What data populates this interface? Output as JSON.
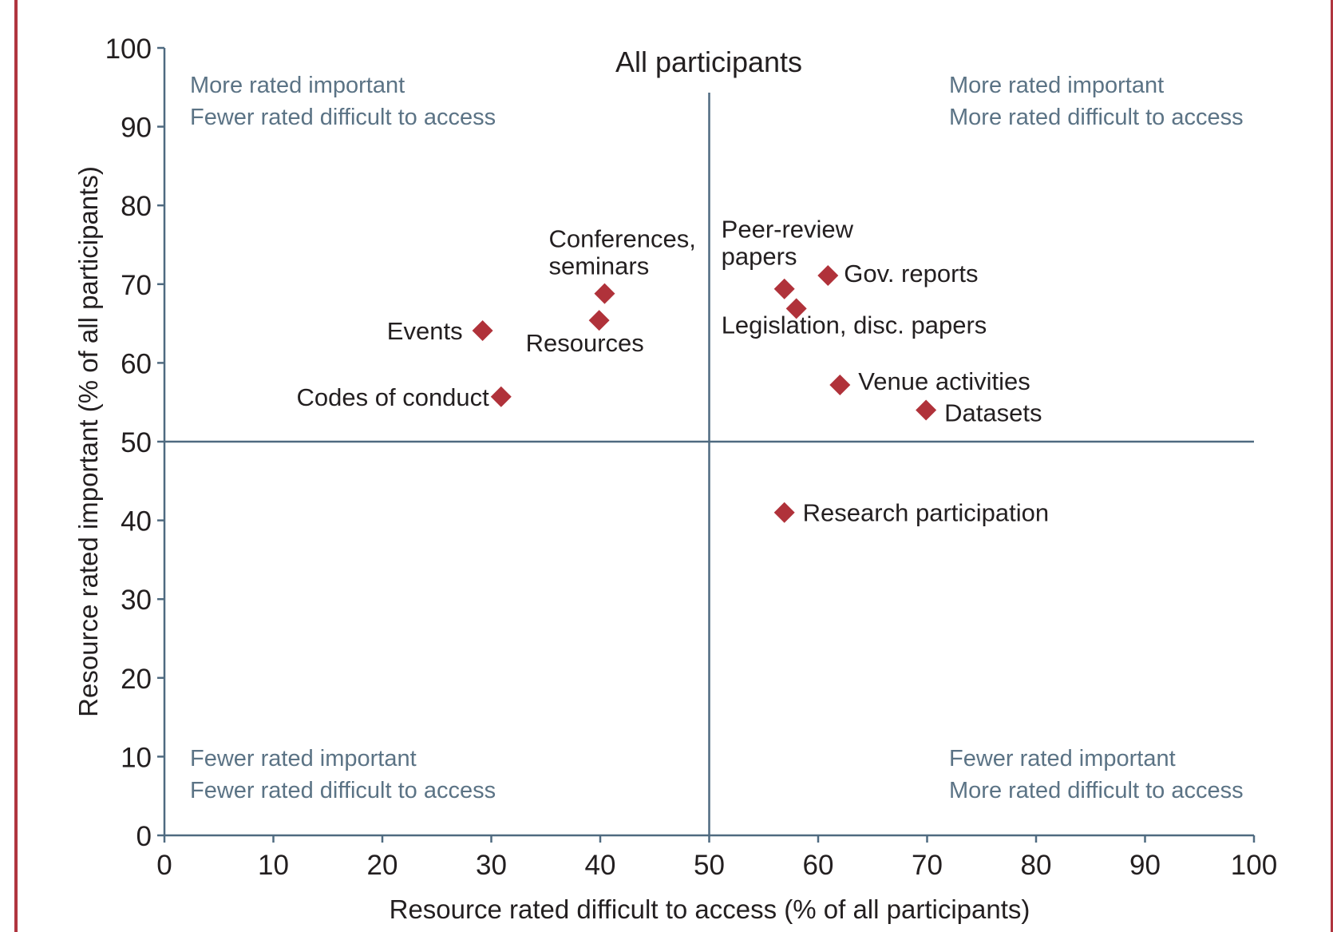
{
  "chart_data": {
    "type": "scatter",
    "title": "All participants",
    "xlabel": "Resource rated difficult to access (% of all participants)",
    "ylabel": "Resource rated important (% of all participants)",
    "xlim": [
      0,
      100
    ],
    "ylim": [
      0,
      100
    ],
    "xticks": [
      0,
      10,
      20,
      30,
      40,
      50,
      60,
      70,
      80,
      90,
      100
    ],
    "yticks": [
      0,
      10,
      20,
      30,
      40,
      50,
      60,
      70,
      80,
      90,
      100
    ],
    "grid": false,
    "reference_lines": {
      "x": 50,
      "y": 50
    },
    "marker": "diamond",
    "marker_color": "#b0323a",
    "points": [
      {
        "label": [
          "Events"
        ],
        "x": 29.2,
        "y": 64.1
      },
      {
        "label": [
          "Codes of conduct"
        ],
        "x": 30.9,
        "y": 55.7
      },
      {
        "label": [
          "Conferences,",
          "seminars"
        ],
        "x": 40.4,
        "y": 68.8
      },
      {
        "label": [
          "Resources"
        ],
        "x": 39.9,
        "y": 65.4
      },
      {
        "label": [
          "Peer-review",
          "papers"
        ],
        "x": 56.9,
        "y": 69.4
      },
      {
        "label": [
          "Legislation, disc. papers"
        ],
        "x": 58.0,
        "y": 66.9
      },
      {
        "label": [
          "Gov. reports"
        ],
        "x": 60.9,
        "y": 71.1
      },
      {
        "label": [
          "Venue activities"
        ],
        "x": 62.0,
        "y": 57.2
      },
      {
        "label": [
          "Datasets"
        ],
        "x": 69.9,
        "y": 54.0
      },
      {
        "label": [
          "Research participation"
        ],
        "x": 56.9,
        "y": 41.0
      }
    ],
    "quadrant_annotations": [
      {
        "position": "top-left",
        "lines": [
          "More rated important",
          "Fewer rated difficult to access"
        ]
      },
      {
        "position": "top-right",
        "lines": [
          "More rated important",
          "More rated difficult to access"
        ]
      },
      {
        "position": "bottom-left",
        "lines": [
          "Fewer rated important",
          "Fewer rated difficult to access"
        ]
      },
      {
        "position": "bottom-right",
        "lines": [
          "Fewer rated important",
          "More rated difficult to access"
        ]
      }
    ],
    "annotation_color": "#5b7385",
    "axis_color": "#4f6a80"
  }
}
